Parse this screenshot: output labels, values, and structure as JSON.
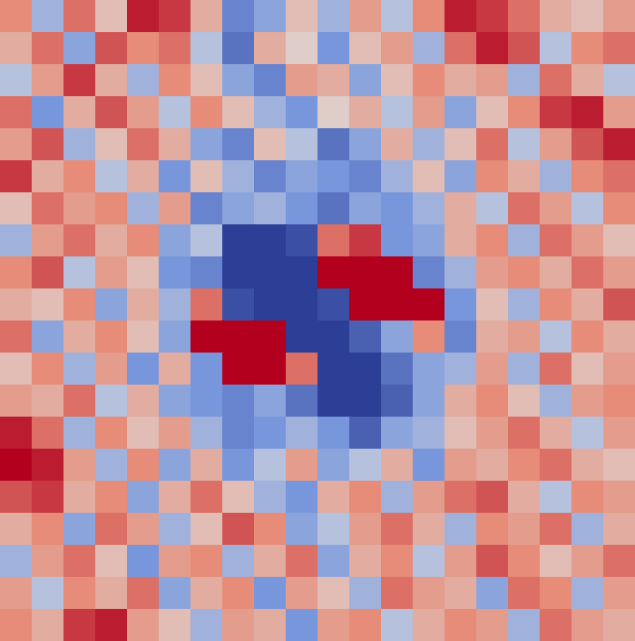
{
  "chart_data": {
    "type": "heatmap",
    "tick_labels": false,
    "zlim": [
      -1,
      1
    ],
    "cells": [
      [
        0.5,
        -0.3,
        0.6,
        0.2,
        0.9,
        0.8,
        0.3,
        -0.6,
        -0.4,
        0.2,
        -0.3,
        0.4,
        -0.2,
        0.5,
        0.9,
        0.8,
        0.6,
        0.3,
        0.2,
        0.4
      ],
      [
        0.3,
        0.6,
        -0.4,
        0.7,
        0.5,
        0.6,
        -0.2,
        -0.7,
        0.3,
        0.1,
        -0.5,
        0.2,
        0.4,
        -0.3,
        0.6,
        0.9,
        0.7,
        -0.2,
        0.5,
        0.6
      ],
      [
        -0.2,
        0.4,
        0.8,
        0.3,
        -0.3,
        0.5,
        0.2,
        -0.4,
        -0.6,
        0.4,
        0.3,
        -0.4,
        0.2,
        0.5,
        0.3,
        0.4,
        -0.3,
        0.6,
        0.3,
        -0.2
      ],
      [
        0.6,
        -0.5,
        0.3,
        0.7,
        0.4,
        -0.2,
        0.5,
        0.2,
        -0.3,
        -0.5,
        0.1,
        0.3,
        -0.2,
        0.4,
        -0.4,
        0.2,
        0.5,
        0.8,
        0.9,
        0.4
      ],
      [
        0.4,
        0.7,
        -0.3,
        0.2,
        0.6,
        0.3,
        -0.4,
        -0.6,
        0.2,
        -0.2,
        -0.7,
        -0.4,
        0.3,
        -0.3,
        0.2,
        0.6,
        -0.2,
        0.4,
        0.7,
        0.9
      ],
      [
        0.8,
        0.3,
        0.5,
        -0.2,
        0.3,
        -0.5,
        0.2,
        -0.3,
        -0.6,
        -0.4,
        -0.5,
        -0.6,
        -0.3,
        0.2,
        -0.4,
        0.5,
        0.3,
        -0.3,
        0.5,
        0.6
      ],
      [
        0.2,
        0.6,
        0.4,
        0.5,
        -0.3,
        0.4,
        -0.6,
        -0.4,
        -0.3,
        -0.5,
        -0.7,
        -0.4,
        -0.5,
        -0.3,
        0.3,
        -0.2,
        0.6,
        0.4,
        -0.2,
        0.5
      ],
      [
        -0.3,
        0.4,
        0.6,
        0.3,
        0.5,
        -0.4,
        -0.2,
        -1,
        -1,
        -0.9,
        0.6,
        0.8,
        -0.5,
        -0.4,
        0.3,
        0.5,
        -0.3,
        0.6,
        0.4,
        0.2
      ],
      [
        0.5,
        0.7,
        -0.2,
        0.4,
        0.2,
        -0.5,
        -0.6,
        -1,
        -1,
        -1,
        1,
        1,
        1,
        -0.6,
        -0.3,
        0.4,
        0.5,
        0.3,
        0.6,
        0.4
      ],
      [
        0.3,
        0.2,
        0.5,
        -0.4,
        0.3,
        -0.3,
        0.6,
        -0.9,
        -1,
        -1,
        -0.9,
        1,
        1,
        1,
        -0.5,
        0.2,
        -0.3,
        0.5,
        0.3,
        0.7
      ],
      [
        0.6,
        -0.4,
        0.3,
        0.5,
        0.2,
        -0.4,
        1,
        1,
        1,
        -1,
        -1,
        -0.8,
        -0.4,
        0.5,
        -0.6,
        0.3,
        0.4,
        -0.2,
        0.5,
        0.3
      ],
      [
        0.2,
        0.5,
        -0.3,
        0.4,
        -0.5,
        0.3,
        -0.5,
        1,
        1,
        0.6,
        -1,
        -1,
        -0.7,
        -0.4,
        -0.3,
        0.4,
        -0.3,
        0.6,
        0.2,
        0.4
      ],
      [
        0.4,
        0.3,
        0.6,
        -0.2,
        0.3,
        -0.4,
        -0.5,
        -0.6,
        -0.4,
        -0.7,
        -1,
        -1,
        -0.8,
        -0.4,
        0.3,
        0.5,
        0.2,
        -0.3,
        0.4,
        0.5
      ],
      [
        0.9,
        0.6,
        -0.3,
        0.5,
        0.2,
        0.4,
        -0.3,
        -0.6,
        -0.5,
        -0.3,
        -0.5,
        -0.8,
        -0.4,
        -0.3,
        0.2,
        0.4,
        0.6,
        0.3,
        -0.2,
        0.4
      ],
      [
        1,
        0.9,
        0.4,
        -0.3,
        0.5,
        -0.4,
        0.3,
        -0.5,
        -0.2,
        0.4,
        -0.4,
        -0.2,
        0.3,
        -0.5,
        0.4,
        0.3,
        0.5,
        0.6,
        0.3,
        0.2
      ],
      [
        0.7,
        0.8,
        0.3,
        0.5,
        -0.4,
        0.3,
        0.6,
        0.2,
        -0.3,
        -0.5,
        0.3,
        0.5,
        -0.3,
        0.4,
        0.6,
        0.7,
        0.3,
        -0.2,
        0.5,
        0.4
      ],
      [
        0.3,
        0.5,
        -0.4,
        0.6,
        0.4,
        -0.3,
        0.2,
        0.7,
        0.5,
        -0.4,
        -0.2,
        0.4,
        0.6,
        0.3,
        -0.3,
        0.5,
        0.4,
        0.6,
        -0.3,
        0.3
      ],
      [
        -0.3,
        0.4,
        0.6,
        0.2,
        -0.5,
        0.4,
        0.5,
        -0.3,
        0.3,
        0.6,
        -0.4,
        0.3,
        0.5,
        -0.2,
        0.4,
        0.7,
        0.5,
        0.2,
        0.4,
        0.6
      ],
      [
        0.4,
        -0.2,
        0.5,
        0.3,
        0.6,
        -0.4,
        0.3,
        0.5,
        -0.5,
        0.4,
        0.2,
        -0.3,
        0.6,
        0.4,
        0.3,
        -0.4,
        0.6,
        0.5,
        -0.3,
        0.4
      ],
      [
        0.5,
        0.3,
        0.8,
        0.9,
        0.4,
        0.2,
        -0.3,
        0.4,
        0.3,
        -0.5,
        0.4,
        0.5,
        -0.2,
        0.3,
        0.5,
        0.4,
        -0.3,
        0.6,
        0.4,
        0.3
      ]
    ]
  }
}
